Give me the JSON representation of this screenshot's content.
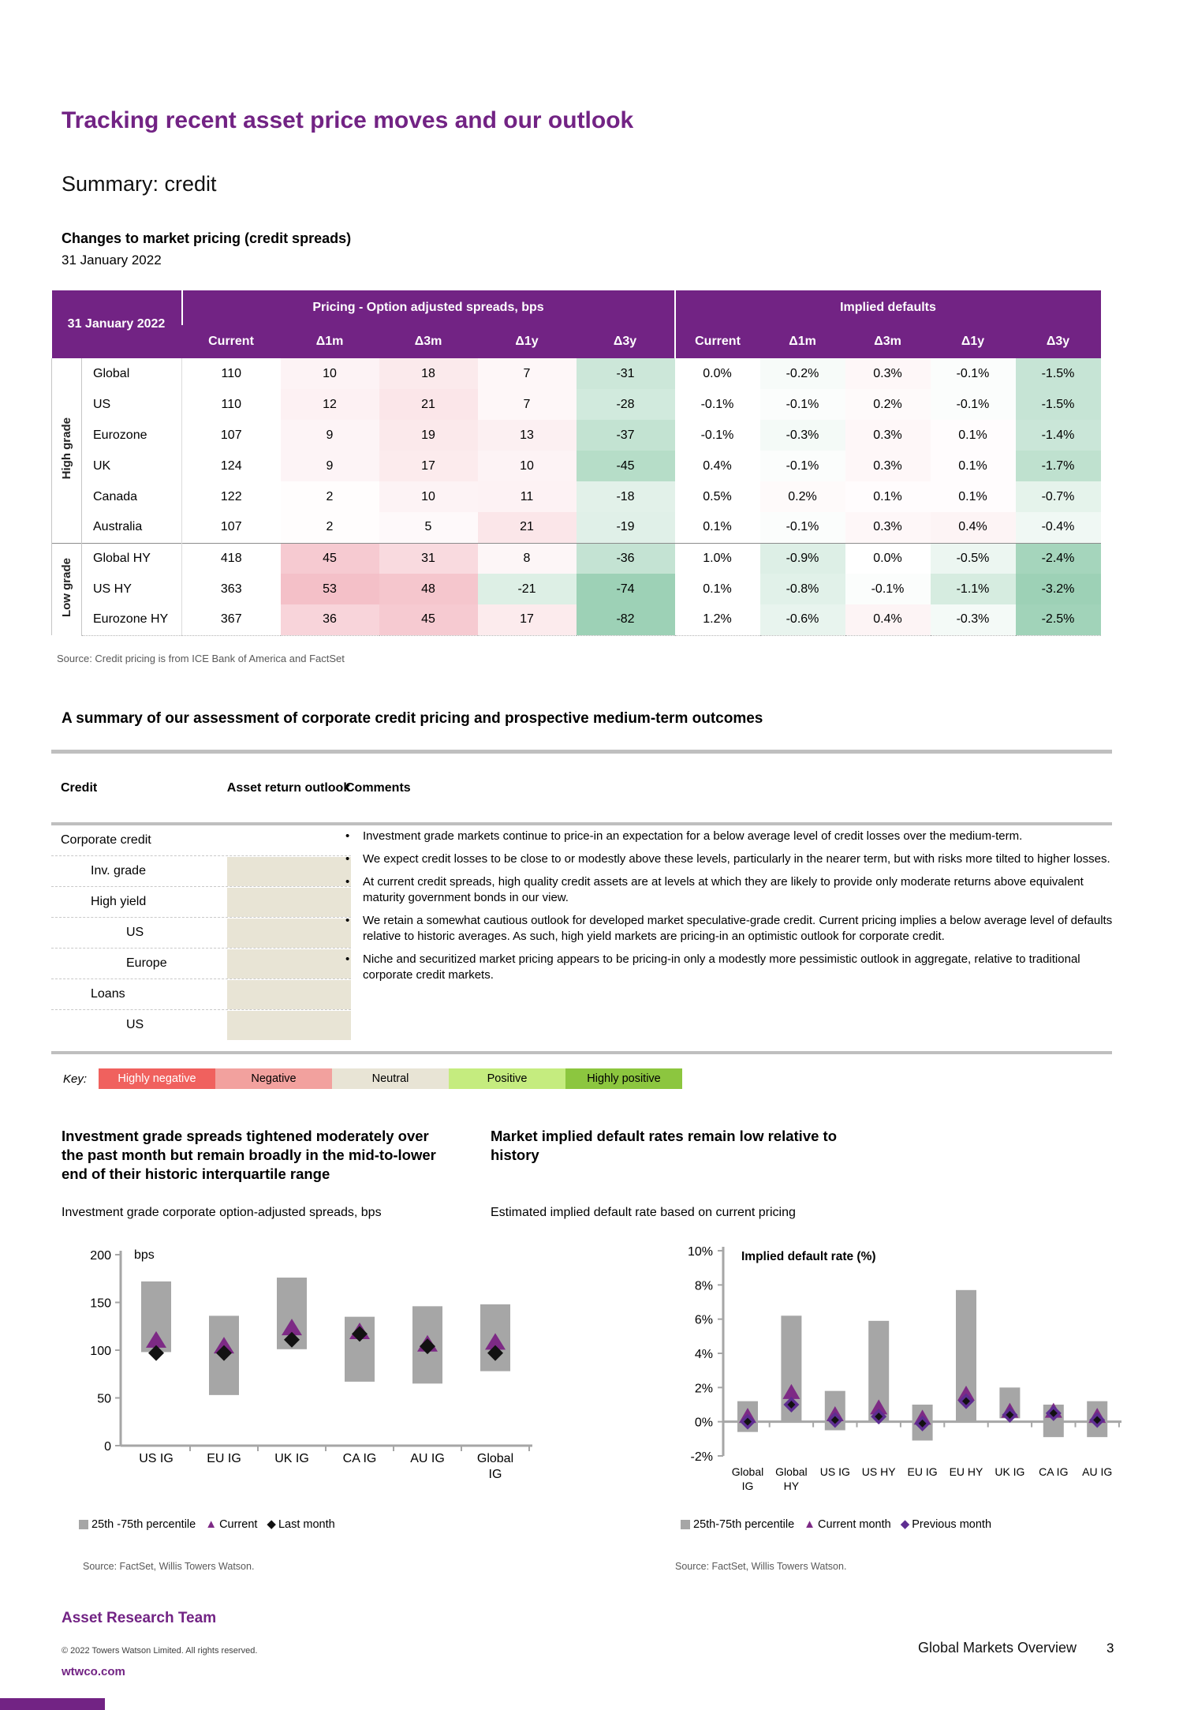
{
  "page": {
    "title": "Tracking recent asset price moves and our outlook",
    "subtitle": "Summary: credit"
  },
  "colors": {
    "accent_purple": "#722384",
    "bar_gray": "#a6a6a6",
    "axis_gray": "#a6a6a6",
    "marker_triangle": "#7d2a85",
    "marker_diamond_left": "#121212",
    "marker_diamond_right": "#5e2d91",
    "positive_cell": "#f3b8c1",
    "negative_cell": "#9dd1b6"
  },
  "pricing_section": {
    "heading": "Changes to market pricing (credit spreads)",
    "date": "31 January 2022",
    "source": "Source: Credit pricing is from ICE Bank of America and FactSet",
    "table": {
      "corner_label": "31 January 2022",
      "group_headers": [
        "Pricing - Option adjusted spreads, bps",
        "Implied defaults"
      ],
      "col_headers": [
        "Current",
        "Δ1m",
        "Δ3m",
        "Δ1y",
        "Δ3y",
        "Current",
        "Δ1m",
        "Δ3m",
        "Δ1y",
        "Δ3y"
      ],
      "row_groups": [
        {
          "label": "High grade",
          "rows": [
            {
              "name": "Global",
              "spreads": [
                110,
                10,
                18,
                7,
                -31
              ],
              "defaults": [
                0.0,
                -0.2,
                0.3,
                -0.1,
                -1.5
              ]
            },
            {
              "name": "US",
              "spreads": [
                110,
                12,
                21,
                7,
                -28
              ],
              "defaults": [
                -0.1,
                -0.1,
                0.2,
                -0.1,
                -1.5
              ]
            },
            {
              "name": "Eurozone",
              "spreads": [
                107,
                9,
                19,
                13,
                -37
              ],
              "defaults": [
                -0.1,
                -0.3,
                0.3,
                0.1,
                -1.4
              ]
            },
            {
              "name": "UK",
              "spreads": [
                124,
                9,
                17,
                10,
                -45
              ],
              "defaults": [
                0.4,
                -0.1,
                0.3,
                0.1,
                -1.7
              ]
            },
            {
              "name": "Canada",
              "spreads": [
                122,
                2,
                10,
                11,
                -18
              ],
              "defaults": [
                0.5,
                0.2,
                0.1,
                0.1,
                -0.7
              ]
            },
            {
              "name": "Australia",
              "spreads": [
                107,
                2,
                5,
                21,
                -19
              ],
              "defaults": [
                0.1,
                -0.1,
                0.3,
                0.4,
                -0.4
              ]
            }
          ]
        },
        {
          "label": "Low grade",
          "rows": [
            {
              "name": "Global HY",
              "spreads": [
                418,
                45,
                31,
                8,
                -36
              ],
              "defaults": [
                1.0,
                -0.9,
                0.0,
                -0.5,
                -2.4
              ]
            },
            {
              "name": "US HY",
              "spreads": [
                363,
                53,
                48,
                -21,
                -74
              ],
              "defaults": [
                0.1,
                -0.8,
                -0.1,
                -1.1,
                -3.2
              ]
            },
            {
              "name": "Eurozone HY",
              "spreads": [
                367,
                36,
                45,
                17,
                -82
              ],
              "defaults": [
                1.2,
                -0.6,
                0.4,
                -0.3,
                -2.5
              ]
            }
          ]
        }
      ]
    }
  },
  "assessment": {
    "heading": "A summary of our assessment of corporate credit pricing and prospective medium-term outcomes",
    "columns": [
      "Credit",
      "Asset return outlook",
      "Comments"
    ],
    "rows": [
      {
        "label": "Corporate credit",
        "indent": 0,
        "outlook": null
      },
      {
        "label": "Inv. grade",
        "indent": 1,
        "outlook": "neutral"
      },
      {
        "label": "High yield",
        "indent": 1,
        "outlook": "neutral"
      },
      {
        "label": "US",
        "indent": 2,
        "outlook": "neutral"
      },
      {
        "label": "Europe",
        "indent": 2,
        "outlook": "neutral"
      },
      {
        "label": "Loans",
        "indent": 1,
        "outlook": "neutral"
      },
      {
        "label": "US",
        "indent": 2,
        "outlook": "neutral"
      }
    ],
    "comments": [
      "Investment grade markets continue to price-in an expectation for a below average level of credit losses over the medium-term.",
      "We expect credit losses to be close to or modestly above these levels, particularly in the nearer term, but with risks more tilted to higher losses.",
      "At current credit spreads, high quality credit assets are at levels at which they are likely to provide only moderate returns above equivalent maturity government bonds in our view.",
      "We retain a somewhat cautious outlook for developed market speculative-grade credit. Current pricing implies a below average level of defaults relative to historic averages. As such, high yield markets are pricing-in an optimistic outlook for corporate credit.",
      "Niche and securitized market pricing appears to be pricing-in only a modestly more pessimistic outlook in aggregate, relative to traditional corporate credit markets."
    ]
  },
  "key": {
    "label": "Key:",
    "items": [
      {
        "id": "highly-negative",
        "label": "Highly negative",
        "color": "#f0615e",
        "text_color": "#ffffff"
      },
      {
        "id": "negative",
        "label": "Negative",
        "color": "#f2a19e",
        "text_color": "#000000"
      },
      {
        "id": "neutral",
        "label": "Neutral",
        "color": "#e8e4d5",
        "text_color": "#000000"
      },
      {
        "id": "positive",
        "label": "Positive",
        "color": "#c5ec7f",
        "text_color": "#000000"
      },
      {
        "id": "highly-positive",
        "label": "Highly positive",
        "color": "#8cc63f",
        "text_color": "#000000"
      }
    ]
  },
  "chart_data": [
    {
      "type": "range-bar",
      "title": "Investment grade spreads tightened moderately over the past month but remain broadly in the mid-to-lower end of their historic interquartile range",
      "subtitle": "Investment grade corporate option-adjusted spreads, bps",
      "axis_label": "bps",
      "ylim": [
        0,
        200
      ],
      "ytick_step": 50,
      "ytick_format": "plain",
      "grid": false,
      "legend_position": "bottom",
      "categories": [
        "US IG",
        "EU IG",
        "UK IG",
        "CA IG",
        "AU IG",
        "Global IG"
      ],
      "series": [
        {
          "name": "25th -75th percentile",
          "type": "range",
          "low": [
            98,
            53,
            101,
            67,
            65,
            78
          ],
          "high": [
            172,
            136,
            176,
            135,
            146,
            148
          ]
        },
        {
          "name": "Current",
          "type": "triangle",
          "values": [
            110,
            104,
            123,
            119,
            106,
            108
          ]
        },
        {
          "name": "Last month",
          "type": "diamond",
          "values": [
            97,
            97,
            111,
            117,
            104,
            97
          ]
        }
      ],
      "source": "Source: FactSet, Willis Towers Watson."
    },
    {
      "type": "range-bar",
      "title": "Market implied default rates remain low relative to history",
      "subtitle": "Estimated implied default rate based on current pricing",
      "axis_label": "Implied default rate (%)",
      "ylim": [
        -2,
        10
      ],
      "ytick_step": 2,
      "ytick_format": "percent",
      "grid": false,
      "legend_position": "bottom",
      "categories": [
        "Global IG",
        "Global HY",
        "US IG",
        "US HY",
        "EU IG",
        "EU HY",
        "UK IG",
        "CA IG",
        "AU IG"
      ],
      "series": [
        {
          "name": "25th-75th percentile",
          "type": "range",
          "low": [
            -0.6,
            0.0,
            -0.5,
            0.0,
            -1.1,
            0.0,
            0.2,
            -0.9,
            -0.9
          ],
          "high": [
            1.2,
            6.2,
            1.8,
            5.9,
            1.0,
            7.7,
            2.0,
            1.0,
            1.2
          ]
        },
        {
          "name": "Current month",
          "type": "triangle",
          "values": [
            0.3,
            1.7,
            0.4,
            0.8,
            0.2,
            1.6,
            0.6,
            0.6,
            0.3
          ]
        },
        {
          "name": "Previous month",
          "type": "diamond",
          "values": [
            0.0,
            1.0,
            0.1,
            0.3,
            -0.1,
            1.2,
            0.4,
            0.5,
            0.1
          ]
        }
      ],
      "source": "Source: FactSet, Willis Towers Watson."
    }
  ],
  "footer": {
    "team": "Asset Research Team",
    "copyright": "© 2022 Towers Watson Limited. All rights reserved.",
    "website": "wtwco.com",
    "doc_title": "Global Markets Overview",
    "page_number": "3"
  }
}
